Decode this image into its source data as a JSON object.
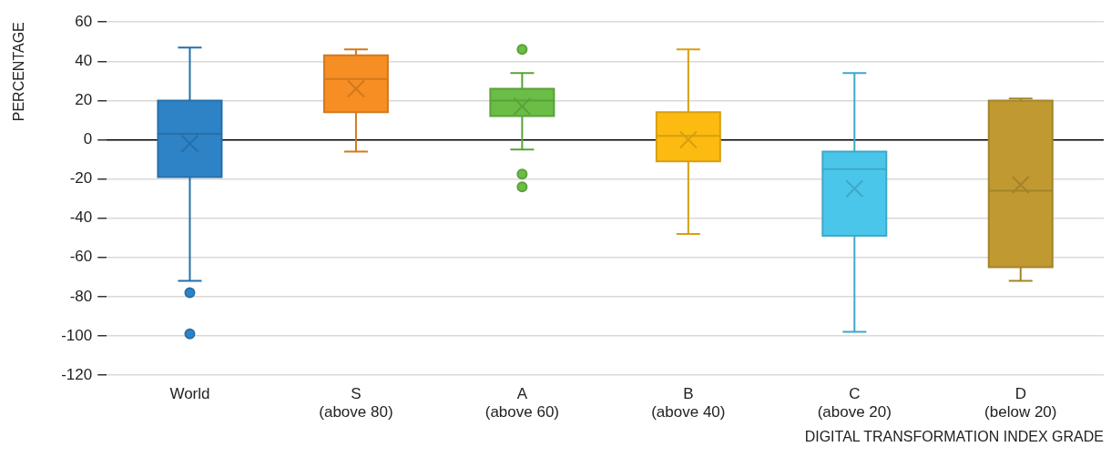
{
  "chart_data": {
    "type": "box",
    "xlabel": "DIGITAL TRANSFORMATION INDEX GRADE",
    "ylabel": "PERCENTAGE",
    "categories": [
      "World",
      "S\n(above 80)",
      "A\n(above 60)",
      "B\n(above 40)",
      "C\n(above 20)",
      "D\n(below 20)"
    ],
    "colors": [
      "#2e83c6",
      "#f68e23",
      "#6abd45",
      "#fdbb12",
      "#4ac6ea",
      "#c09a31"
    ],
    "boxes": [
      {
        "low": -72,
        "q1": -19,
        "median": 3,
        "q3": 20,
        "high": 47,
        "mean": -2,
        "outliers": [
          -78,
          -99
        ]
      },
      {
        "low": -6,
        "q1": 14,
        "median": 31,
        "q3": 43,
        "high": 46,
        "mean": 26
      },
      {
        "low": -5,
        "q1": 12,
        "median": 20,
        "q3": 26,
        "high": 34,
        "mean": 17,
        "outliers": [
          46,
          -17.5,
          -24
        ]
      },
      {
        "low": -48,
        "q1": -11,
        "median": 2,
        "q3": 14,
        "high": 46,
        "mean": 0
      },
      {
        "low": -98,
        "q1": -49,
        "median": -15,
        "q3": -6,
        "high": 34,
        "mean": -25
      },
      {
        "low": -72,
        "q1": -65,
        "median": -26,
        "q3": 20,
        "high": 21,
        "mean": -23
      }
    ],
    "ylim": [
      -120,
      60
    ],
    "yticks": [
      -120,
      -100,
      -80,
      -60,
      -40,
      -20,
      0,
      20,
      40,
      60
    ],
    "grid": "y"
  }
}
